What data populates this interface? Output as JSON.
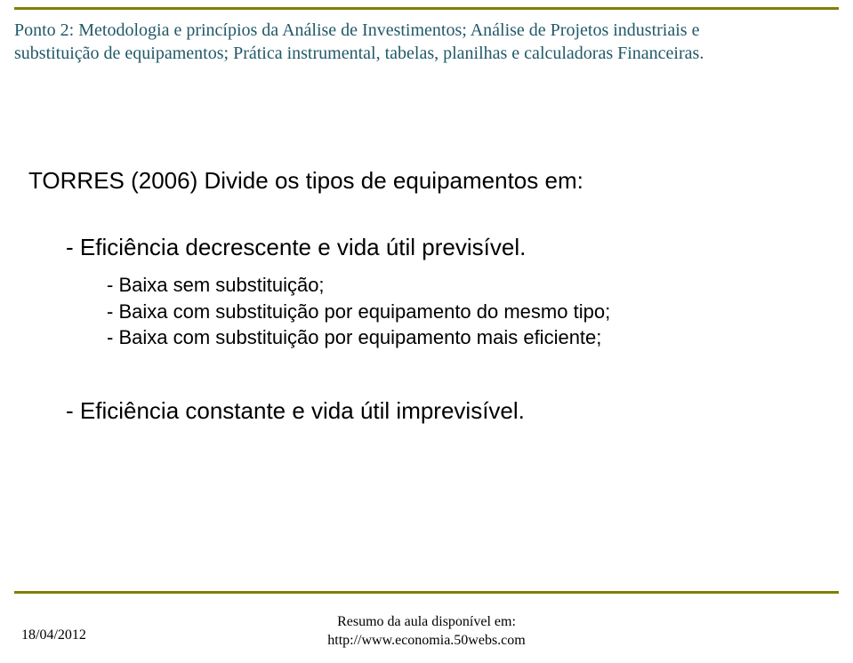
{
  "colors": {
    "rule": "#808000",
    "header_text": "#215968",
    "body_text": "#000000",
    "background": "#ffffff"
  },
  "typography": {
    "header_family": "Georgia serif",
    "header_size_pt": 15,
    "body_family": "Arial sans-serif",
    "torres_size_pt": 20,
    "sub1_size_pt": 20,
    "sub2_size_pt": 17,
    "footer_size_pt": 12
  },
  "header": {
    "line1": "Ponto 2: Metodologia e princípios da Análise de Investimentos; Análise de Projetos industriais e",
    "line2": "substituição de equipamentos; Prática instrumental, tabelas, planilhas e calculadoras Financeiras."
  },
  "content": {
    "torres": "TORRES (2006) Divide os tipos de equipamentos em:",
    "bullet1": "- Eficiência decrescente e vida útil previsível.",
    "sub_bullets": [
      "- Baixa sem substituição;",
      "- Baixa com substituição por equipamento do mesmo tipo;",
      "- Baixa com substituição por equipamento mais eficiente;"
    ],
    "bullet2": "- Eficiência constante e vida útil imprevisível."
  },
  "footer": {
    "date": "18/04/2012",
    "center_line1": "Resumo da aula disponível em:",
    "center_line2": "http://www.economia.50webs.com"
  }
}
